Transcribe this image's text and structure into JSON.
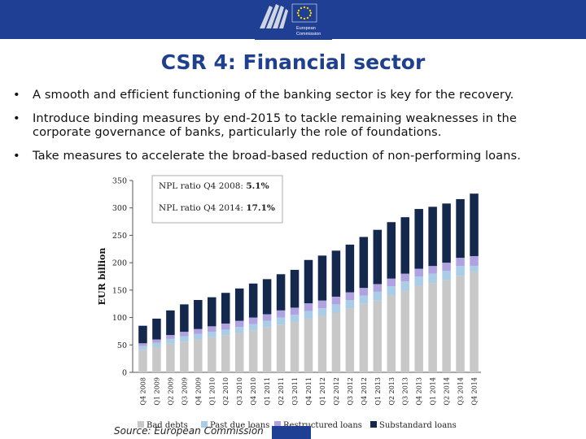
{
  "header": {
    "logo_text": [
      "European",
      "Commission"
    ],
    "colors": {
      "bar": "#1e3f94",
      "stars": "#f6d400"
    }
  },
  "slide": {
    "title": "CSR 4: Financial sector",
    "bullets": [
      "A smooth and efficient functioning of the banking sector is key for the recovery.",
      "Introduce binding measures by end-2015 to tackle remaining weaknesses in the corporate governance of banks, particularly the role of foundations.",
      "Take measures to accelerate the broad-based reduction of non-performing loans."
    ],
    "source": "Source: European Commission"
  },
  "chart_data": {
    "type": "bar",
    "stacked": true,
    "ylabel": "EUR billion",
    "ylim": [
      0,
      350
    ],
    "yticks": [
      0,
      50,
      100,
      150,
      200,
      250,
      300,
      350
    ],
    "annotations": [
      {
        "label": "NPL ratio Q4 2008: ",
        "value": "5.1%"
      },
      {
        "label": "NPL ratio Q4 2014: ",
        "value": "17.1%"
      }
    ],
    "categories": [
      "Q4 2008",
      "Q1 2009",
      "Q2 2009",
      "Q3 2009",
      "Q4 2009",
      "Q1 2010",
      "Q2 2010",
      "Q3 2010",
      "Q4 2010",
      "Q1 2011",
      "Q2 2011",
      "Q3 2011",
      "Q4 2011",
      "Q1 2012",
      "Q2 2012",
      "Q3 2012",
      "Q4 2012",
      "Q1 2013",
      "Q2 2013",
      "Q3 2013",
      "Q4 2013",
      "Q1 2014",
      "Q2 2014",
      "Q3 2014",
      "Q4 2014"
    ],
    "series": [
      {
        "name": "Bad debts",
        "color": "#c8c8c8",
        "values": [
          41,
          46,
          52,
          56,
          60,
          64,
          68,
          72,
          77,
          82,
          87,
          92,
          98,
          103,
          109,
          117,
          125,
          131,
          140,
          149,
          158,
          163,
          168,
          176,
          184
        ]
      },
      {
        "name": "Past due loans",
        "color": "#a9cde6",
        "values": [
          7,
          8,
          9,
          10,
          10,
          10,
          10,
          11,
          11,
          12,
          13,
          13,
          14,
          14,
          15,
          15,
          15,
          16,
          17,
          17,
          17,
          17,
          17,
          18,
          10
        ]
      },
      {
        "name": "Restructured loans",
        "color": "#b0a2e0",
        "values": [
          5,
          6,
          7,
          8,
          9,
          10,
          11,
          11,
          12,
          12,
          13,
          13,
          14,
          14,
          14,
          14,
          14,
          14,
          14,
          14,
          14,
          14,
          15,
          15,
          18
        ]
      },
      {
        "name": "Substandard loans",
        "color": "#14284d",
        "values": [
          32,
          38,
          45,
          50,
          53,
          53,
          56,
          59,
          62,
          64,
          66,
          69,
          79,
          82,
          84,
          87,
          93,
          99,
          103,
          103,
          109,
          108,
          108,
          107,
          114
        ]
      }
    ]
  }
}
